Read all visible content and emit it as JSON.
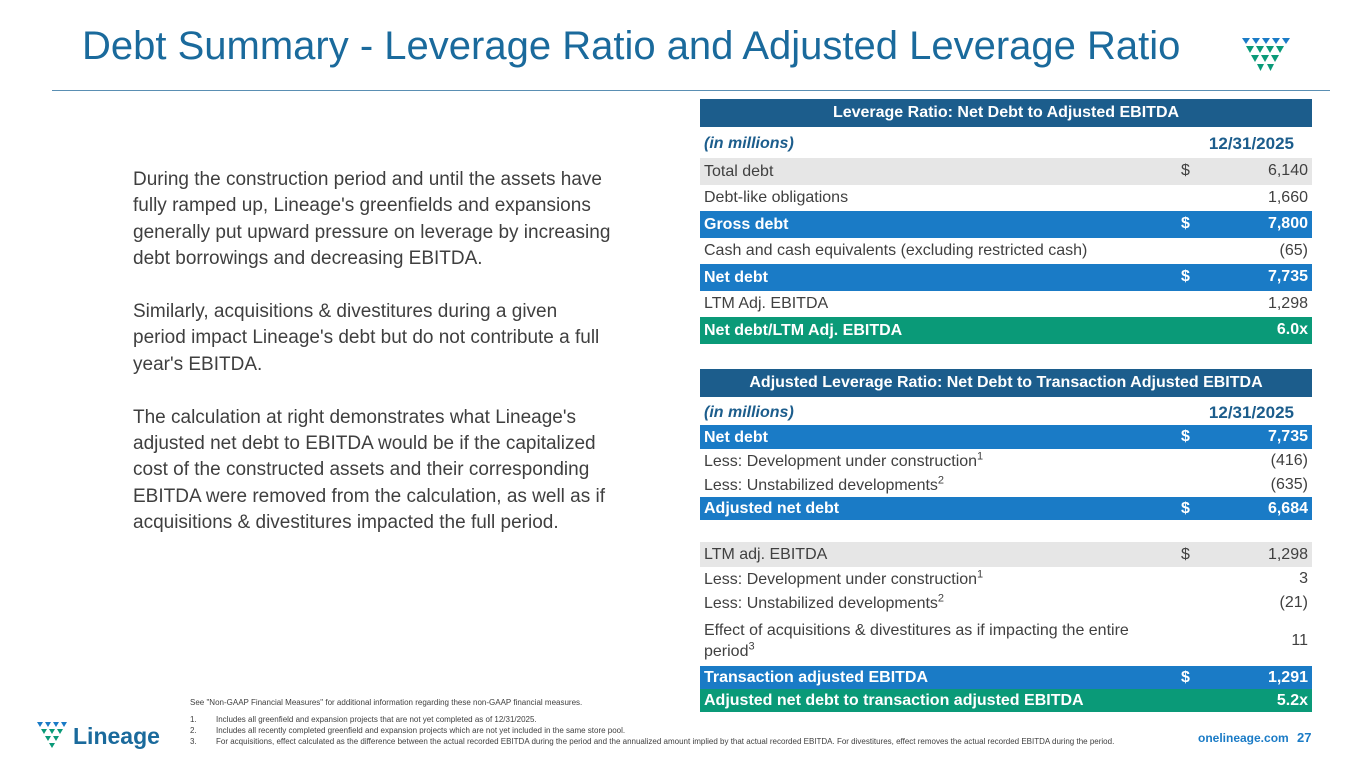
{
  "title": "Debt Summary - Leverage Ratio and Adjusted Leverage Ratio",
  "paragraphs": [
    "During the construction period and until the assets have fully ramped up, Lineage's greenfields and expansions generally put upward pressure on leverage by increasing debt borrowings and decreasing EBITDA.",
    "Similarly, acquisitions & divestitures during a given period impact Lineage's debt but do not contribute a full year's EBITDA.",
    "The calculation at right demonstrates what Lineage's adjusted net debt to EBITDA would be if the capitalized cost of the constructed assets and their corresponding EBITDA were removed from the calculation, as well as if acquisitions & divestitures impacted the full period."
  ],
  "tables": [
    {
      "title": "Leverage Ratio: Net Debt to Adjusted EBITDA",
      "unit": "(in millions)",
      "date": "12/31/2025",
      "rows": [
        {
          "label": "Total debt",
          "currency": "$",
          "value": "6,140"
        },
        {
          "label": "Debt-like obligations",
          "value": "1,660"
        },
        {
          "label": "Gross debt",
          "currency": "$",
          "value": "7,800"
        },
        {
          "label": "Cash and cash equivalents (excluding restricted cash)",
          "value": "(65)"
        },
        {
          "label": "Net debt",
          "currency": "$",
          "value": "7,735"
        },
        {
          "label": "LTM Adj. EBITDA",
          "value": "1,298"
        },
        {
          "label": "Net debt/LTM Adj. EBITDA",
          "value": "6.0x"
        }
      ]
    },
    {
      "title": "Adjusted Leverage Ratio: Net Debt to Transaction Adjusted EBITDA",
      "unit": "(in millions)",
      "date": "12/31/2025",
      "rows": [
        {
          "label": "Net debt",
          "currency": "$",
          "value": "7,735"
        },
        {
          "label": "Less: Development under construction",
          "note": "1",
          "value": "(416)"
        },
        {
          "label": "Less: Unstabilized developments",
          "note": "2",
          "value": "(635)"
        },
        {
          "label": "Adjusted net debt",
          "currency": "$",
          "value": "6,684"
        },
        {},
        {
          "label": "LTM adj. EBITDA",
          "currency": "$",
          "value": "1,298"
        },
        {
          "label": "Less: Development under construction",
          "note": "1",
          "value": "3"
        },
        {
          "label": "Less: Unstabilized developments",
          "note": "2",
          "value": "(21)"
        },
        {
          "label": "Effect of acquisitions & divestitures as if impacting the entire period",
          "note": "3",
          "value": "11"
        },
        {
          "label": "Transaction adjusted EBITDA",
          "currency": "$",
          "value": "1,291"
        },
        {
          "label": "Adjusted net debt to transaction adjusted EBITDA",
          "value": "5.2x"
        }
      ]
    }
  ],
  "disclaimer": "See \"Non-GAAP Financial Measures\" for additional information regarding these non-GAAP financial measures.",
  "footnotes": [
    {
      "number": "1.",
      "text": "Includes all greenfield and expansion projects that are not yet completed as of 12/31/2025."
    },
    {
      "number": "2.",
      "text": "Includes all recently completed greenfield and expansion projects which are not yet included in the same store pool."
    },
    {
      "number": "3.",
      "text": "For acquisitions, effect calculated as the difference between the actual recorded EBITDA during the period and the annualized amount implied by that actual recorded EBITDA. For divestitures, effect removes the actual recorded EBITDA during the period."
    }
  ],
  "logo_text": "Lineage",
  "website": "onelineage.com",
  "page_number": "27"
}
